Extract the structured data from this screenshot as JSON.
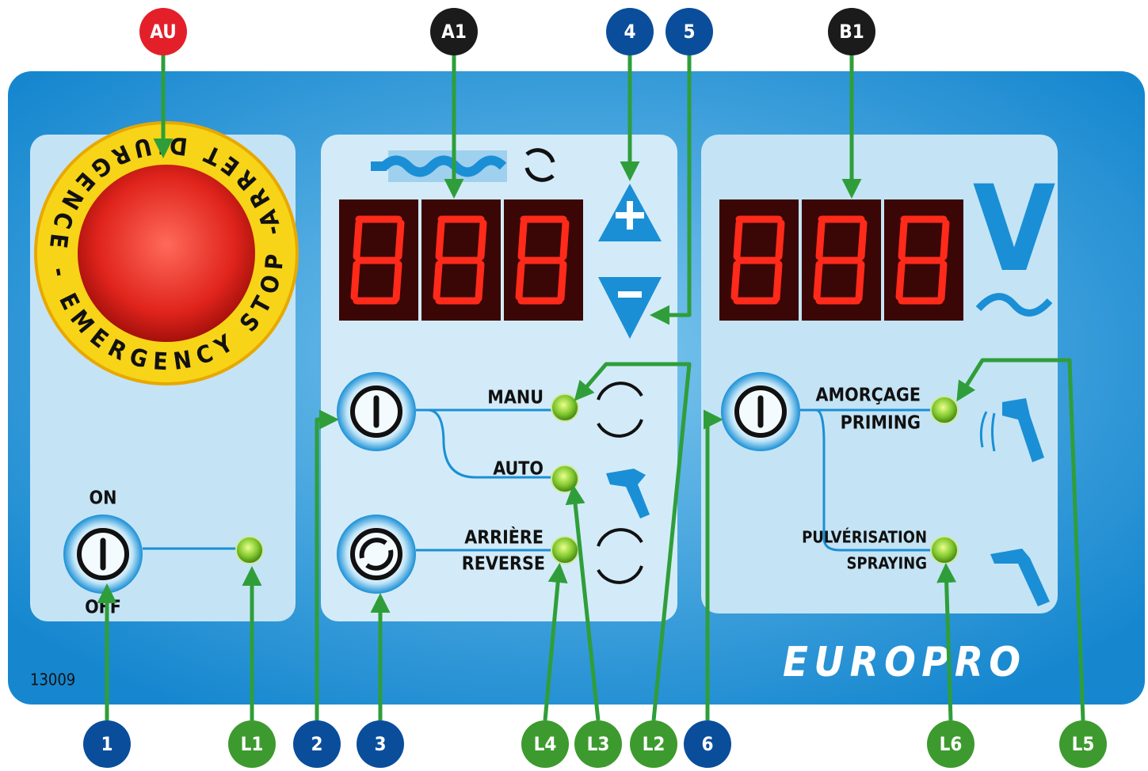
{
  "emergency": {
    "ring_text": "ARRET D'URGENCE - EMERGENCY STOP - "
  },
  "left_panel": {
    "on": "ON",
    "off": "OFF"
  },
  "middle_panel": {
    "manu": "MANU",
    "auto": "AUTO",
    "reverse_fr": "ARRIÈRE",
    "reverse_en": "REVERSE"
  },
  "right_panel": {
    "priming_fr": "AMORÇAGE",
    "priming_en": "PRIMING",
    "spraying_fr": "PULVÉRISATION",
    "spraying_en": "SPRAYING",
    "unit": "V"
  },
  "footer": {
    "code": "13009",
    "brand": "EUROPRO"
  },
  "callouts": [
    "AU",
    "A1",
    "4",
    "5",
    "B1",
    "1",
    "L1",
    "2",
    "3",
    "L4",
    "L3",
    "L2",
    "6",
    "L6",
    "L5"
  ]
}
